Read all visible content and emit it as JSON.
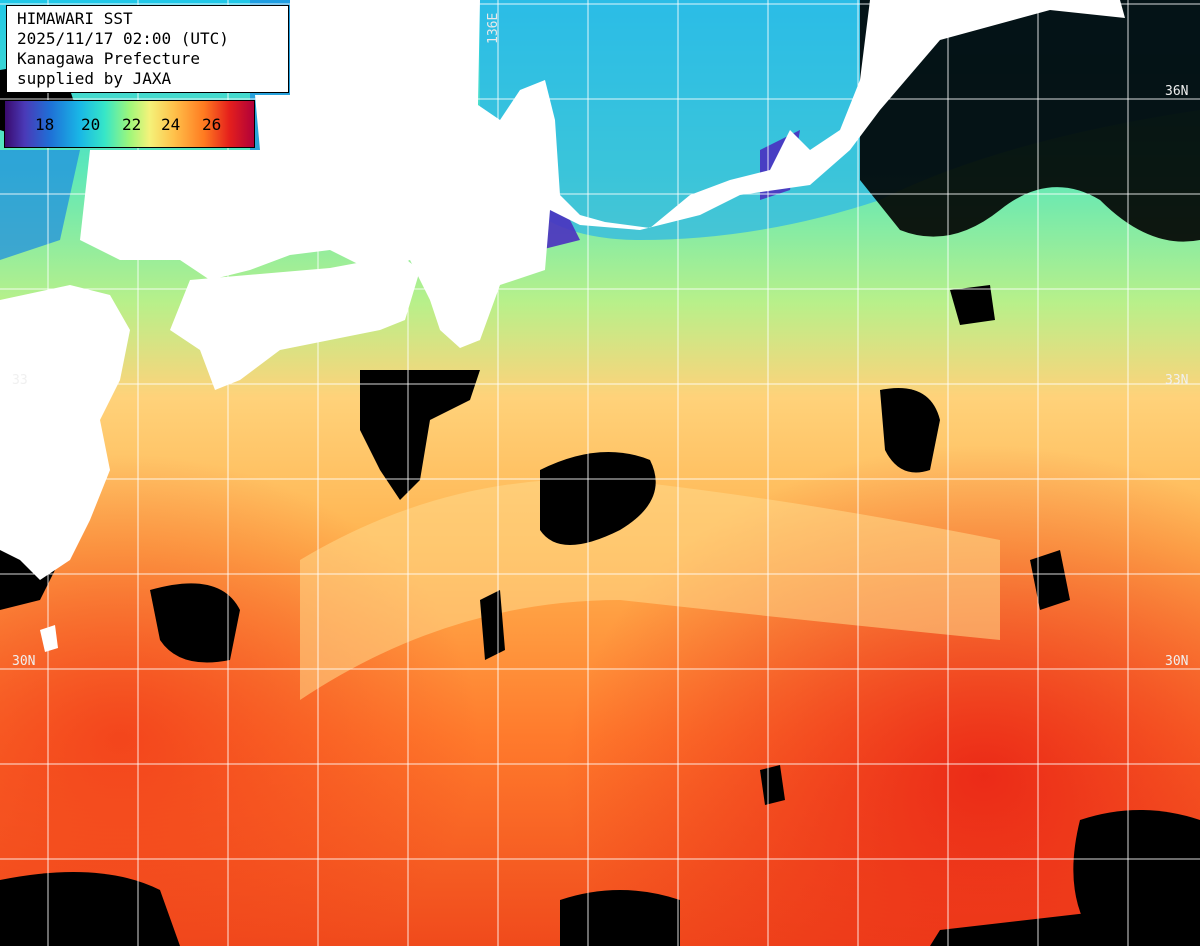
{
  "title_lines": [
    "HIMAWARI SST",
    "2025/11/17 02:00 (UTC)",
    "Kanagawa Prefecture",
    "supplied by JAXA"
  ],
  "legend": {
    "ticks": [
      "18",
      "20",
      "22",
      "24",
      "26"
    ]
  },
  "graticule": {
    "lon_label": "136E",
    "lat_labels_left": [
      "33",
      "30N"
    ],
    "lat_labels_right": [
      "36N",
      "33N",
      "30N"
    ]
  },
  "colors": {
    "cloud": "#000000",
    "land": "#ffffff",
    "grid": "#ffffff",
    "cold": "#3a2ca8",
    "cyan": "#3ee2d6",
    "green": "#9cf27e",
    "yellow": "#f4ef86",
    "orange": "#ff9a3c",
    "red": "#ec3c1c"
  }
}
